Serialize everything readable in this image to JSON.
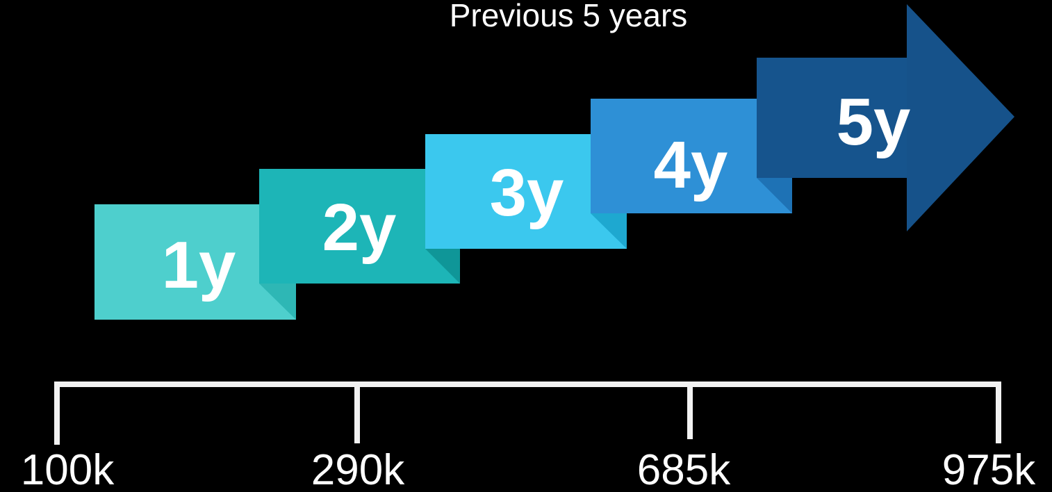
{
  "title": "Previous 5 years",
  "steps": [
    {
      "label": "1y",
      "color": "#4ECFCD",
      "fold_color": "#2EB7B5"
    },
    {
      "label": "2y",
      "color": "#1DB5B7",
      "fold_color": "#0F9698"
    },
    {
      "label": "3y",
      "color": "#3BC8EE",
      "fold_color": "#1EA8D0"
    },
    {
      "label": "4y",
      "color": "#2E90D6",
      "fold_color": "#1E72B5"
    },
    {
      "label": "5y",
      "color": "#16528A",
      "fold_color": "#0E3D69"
    }
  ],
  "scale": {
    "ticks": [
      "100k",
      "290k",
      "685k",
      "975k"
    ],
    "line_color": "#F2F2F2"
  }
}
